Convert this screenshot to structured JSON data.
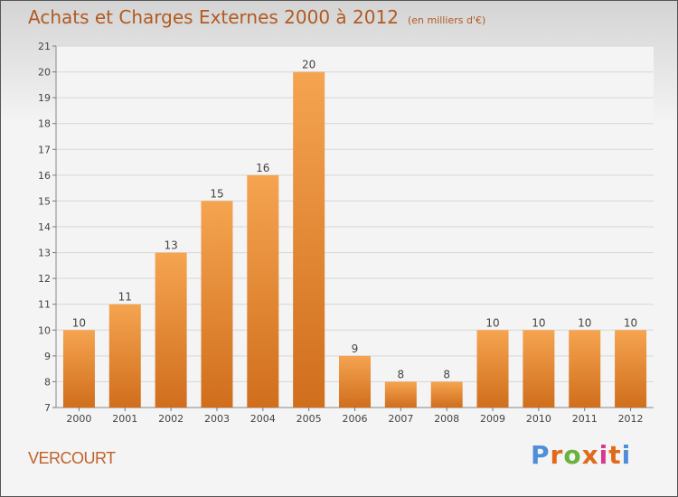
{
  "page": {
    "title": "Achats et Charges Externes 2000 à 2012",
    "subtitle": "(en milliers d'€)",
    "commune": "VERCOURT",
    "logo_text": "Proxiti"
  },
  "colors": {
    "bar_light": "#f5a450",
    "bar_dark": "#d06e1c",
    "title": "#b15a22",
    "logo": [
      "#4f8fd8",
      "#e06a1a",
      "#6ab23e",
      "#e06a1a",
      "#d63a8a",
      "#e06a1a",
      "#4f8fd8"
    ]
  },
  "chart_data": {
    "type": "bar",
    "title": "Achats et Charges Externes 2000 à 2012",
    "subtitle": "(en milliers d'€)",
    "categories": [
      "2000",
      "2001",
      "2002",
      "2003",
      "2004",
      "2005",
      "2006",
      "2007",
      "2008",
      "2009",
      "2010",
      "2011",
      "2012"
    ],
    "values": [
      10,
      11,
      13,
      15,
      16,
      20,
      9,
      8,
      8,
      10,
      10,
      10,
      10
    ],
    "ylim": [
      7,
      21
    ],
    "yticks": [
      7,
      8,
      9,
      10,
      11,
      12,
      13,
      14,
      15,
      16,
      17,
      18,
      19,
      20,
      21
    ],
    "grid": true
  }
}
